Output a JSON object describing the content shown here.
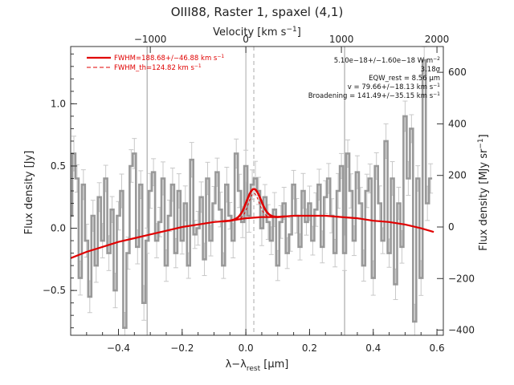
{
  "chart_data": {
    "type": "line",
    "title": "OIII88, Raster 1, spaxel (4,1)",
    "xlabel": "λ−λ_rest [μm]",
    "xlabel_main": "λ−λ",
    "xlabel_sub": "rest",
    "xlabel_unit": " [μm]",
    "ylabel": "Flux density [Jy]",
    "top_xlabel": "Velocity [km s⁻¹]",
    "top_xlabel_main": "Velocity [km s",
    "top_xlabel_sup": "−1",
    "top_xlabel_end": "]",
    "right_ylabel": "Flux density [MJy sr⁻¹]",
    "right_ylabel_main": "Flux density [MJy sr",
    "right_ylabel_sup": "−1",
    "right_ylabel_end": "]",
    "xlim": [
      -0.55,
      0.62
    ],
    "ylim": [
      -0.86,
      1.46
    ],
    "right_ylim": [
      -420,
      700
    ],
    "x_ticks": [
      -0.4,
      -0.2,
      0.0,
      0.2,
      0.4,
      0.6
    ],
    "x_tick_labels": [
      "−0.4",
      "−0.2",
      "0.0",
      "0.2",
      "0.4",
      "0.6"
    ],
    "y_ticks": [
      -0.5,
      0.0,
      0.5,
      1.0
    ],
    "y_tick_labels": [
      "−0.5",
      "0.0",
      "0.5",
      "1.0"
    ],
    "top_ticks_lambda": [
      -0.3,
      0.0,
      0.3,
      0.6
    ],
    "top_tick_labels": [
      "−1000",
      "0",
      "1000",
      "2000"
    ],
    "right_ticks": [
      -400,
      -200,
      0,
      200,
      400,
      600
    ],
    "right_tick_labels": [
      "−400",
      "−200",
      "0",
      "200",
      "400",
      "600"
    ],
    "velocity_markers_lambda": [
      -0.31,
      0.31
    ],
    "dashed_marker_lambda": 0.025,
    "legend": {
      "position": "top-left",
      "entries": [
        {
          "label": "FWHM=188.68+/−46.88 km s",
          "sup": "−1",
          "style": "solid",
          "color": "#e00000"
        },
        {
          "label": "FWHM_th=124.82 km s",
          "sup": "−1",
          "style": "dashed",
          "color": "#e00000"
        }
      ]
    },
    "annotations": [
      {
        "text": "5.10e−18+/−1.60e−18 W m",
        "sup": "−2"
      },
      {
        "text": "3.18σ",
        "sup": ""
      },
      {
        "text": "EQW_rest = 8.56 μm",
        "sup": ""
      },
      {
        "text": "v = 79.66+/−18.13 km s",
        "sup": "−1"
      },
      {
        "text": "Broadening = 141.49+/−35.15 km s",
        "sup": "−1"
      }
    ],
    "series": [
      {
        "name": "",
        "style": "steps",
        "color": "#999999",
        "x": [
          -0.55,
          -0.54,
          -0.53,
          -0.52,
          -0.51,
          -0.5,
          -0.49,
          -0.48,
          -0.47,
          -0.46,
          -0.45,
          -0.44,
          -0.43,
          -0.42,
          -0.41,
          -0.4,
          -0.39,
          -0.38,
          -0.37,
          -0.36,
          -0.35,
          -0.34,
          -0.33,
          -0.32,
          -0.31,
          -0.3,
          -0.29,
          -0.28,
          -0.27,
          -0.26,
          -0.25,
          -0.24,
          -0.23,
          -0.22,
          -0.21,
          -0.2,
          -0.19,
          -0.18,
          -0.17,
          -0.16,
          -0.15,
          -0.14,
          -0.13,
          -0.12,
          -0.11,
          -0.1,
          -0.09,
          -0.08,
          -0.07,
          -0.06,
          -0.05,
          -0.04,
          -0.03,
          -0.02,
          -0.01,
          0.0,
          0.01,
          0.02,
          0.03,
          0.04,
          0.05,
          0.06,
          0.07,
          0.08,
          0.09,
          0.1,
          0.11,
          0.12,
          0.13,
          0.14,
          0.15,
          0.16,
          0.17,
          0.18,
          0.19,
          0.2,
          0.21,
          0.22,
          0.23,
          0.24,
          0.25,
          0.26,
          0.27,
          0.28,
          0.29,
          0.3,
          0.31,
          0.32,
          0.33,
          0.34,
          0.35,
          0.36,
          0.37,
          0.38,
          0.39,
          0.4,
          0.41,
          0.42,
          0.43,
          0.44,
          0.45,
          0.46,
          0.47,
          0.48,
          0.49,
          0.5,
          0.51,
          0.52,
          0.53,
          0.54,
          0.55,
          0.56,
          0.57,
          0.58
        ],
        "y": [
          0.1,
          0.6,
          0.4,
          -0.4,
          0.35,
          -0.1,
          -0.55,
          0.1,
          -0.3,
          0.25,
          -0.1,
          0.4,
          -0.2,
          0.15,
          -0.5,
          0.1,
          0.3,
          -0.8,
          -0.2,
          0.5,
          0.6,
          -0.15,
          0.35,
          -0.6,
          -0.1,
          0.3,
          0.45,
          -0.1,
          0.05,
          0.4,
          -0.3,
          0.1,
          0.35,
          -0.2,
          0.3,
          -0.1,
          0.2,
          -0.3,
          0.55,
          -0.05,
          0.0,
          0.25,
          -0.25,
          0.4,
          -0.1,
          0.2,
          0.45,
          0.15,
          -0.3,
          0.35,
          0.1,
          -0.1,
          0.6,
          0.3,
          0.05,
          0.5,
          0.1,
          0.35,
          0.4,
          0.3,
          0.0,
          0.25,
          0.05,
          -0.1,
          0.15,
          -0.3,
          0.05,
          0.2,
          -0.2,
          -0.05,
          0.35,
          0.1,
          -0.15,
          0.3,
          0.05,
          0.2,
          -0.1,
          0.15,
          0.35,
          -0.15,
          0.25,
          0.4,
          0.1,
          -0.2,
          0.3,
          0.5,
          -0.2,
          0.6,
          0.3,
          -0.1,
          0.45,
          0.2,
          -0.3,
          0.3,
          0.4,
          -0.4,
          0.5,
          0.2,
          -0.1,
          0.7,
          -0.2,
          0.4,
          -0.45,
          0.2,
          -0.15,
          0.9,
          0.4,
          0.8,
          -0.75,
          0.4,
          -0.4,
          1.35,
          0.2,
          0.4
        ]
      },
      {
        "name": "",
        "style": "smooth",
        "color": "#e00000",
        "x": [
          -0.55,
          -0.5,
          -0.45,
          -0.4,
          -0.35,
          -0.3,
          -0.25,
          -0.2,
          -0.15,
          -0.1,
          -0.05,
          0.0,
          0.05,
          0.1,
          0.15,
          0.2,
          0.25,
          0.3,
          0.35,
          0.4,
          0.45,
          0.5,
          0.55,
          0.59
        ],
        "y": [
          -0.24,
          -0.19,
          -0.15,
          -0.11,
          -0.08,
          -0.05,
          -0.02,
          0.01,
          0.03,
          0.05,
          0.06,
          0.08,
          0.09,
          0.09,
          0.1,
          0.1,
          0.1,
          0.09,
          0.08,
          0.06,
          0.05,
          0.03,
          0.0,
          -0.03
        ]
      },
      {
        "name": "",
        "style": "gaussian",
        "color": "#e00000",
        "center": 0.025,
        "sigma": 0.022,
        "amplitude": 0.23
      }
    ]
  }
}
